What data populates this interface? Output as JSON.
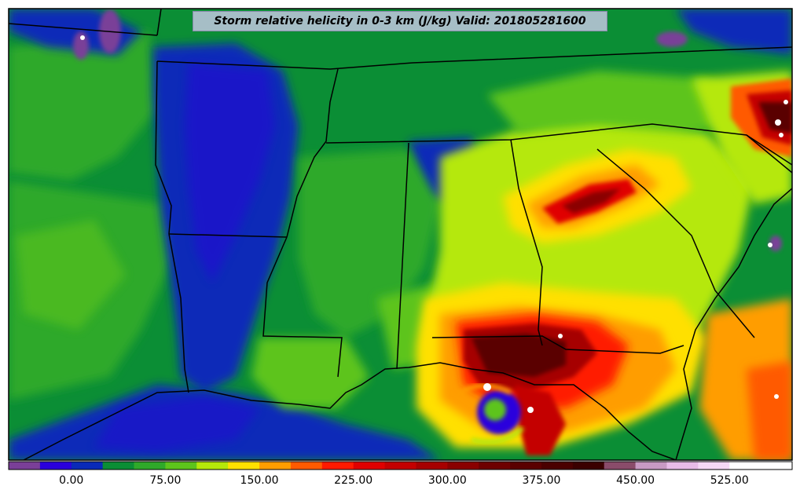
{
  "title": "Storm relative helicity in 0-3 km (J/kg) Valid: 201805281600",
  "colorbar": {
    "colors": [
      "#7a3f98",
      "#2a00dd",
      "#0a2ab8",
      "#0b8e35",
      "#2fa92a",
      "#5dc41c",
      "#b5e80a",
      "#ffe000",
      "#ff9d00",
      "#ff5a00",
      "#ff1a00",
      "#e00000",
      "#c40000",
      "#a60000",
      "#8a0000",
      "#6e0000",
      "#5a0000",
      "#4a0000",
      "#3a0000",
      "#8a4c6a",
      "#c89ac4",
      "#e8bce8",
      "#f6d8f6",
      "#ffffff",
      "#ffffff"
    ],
    "tick_labels": [
      "0.00",
      "75.00",
      "150.00",
      "225.00",
      "300.00",
      "375.00",
      "450.00",
      "525.00"
    ]
  }
}
